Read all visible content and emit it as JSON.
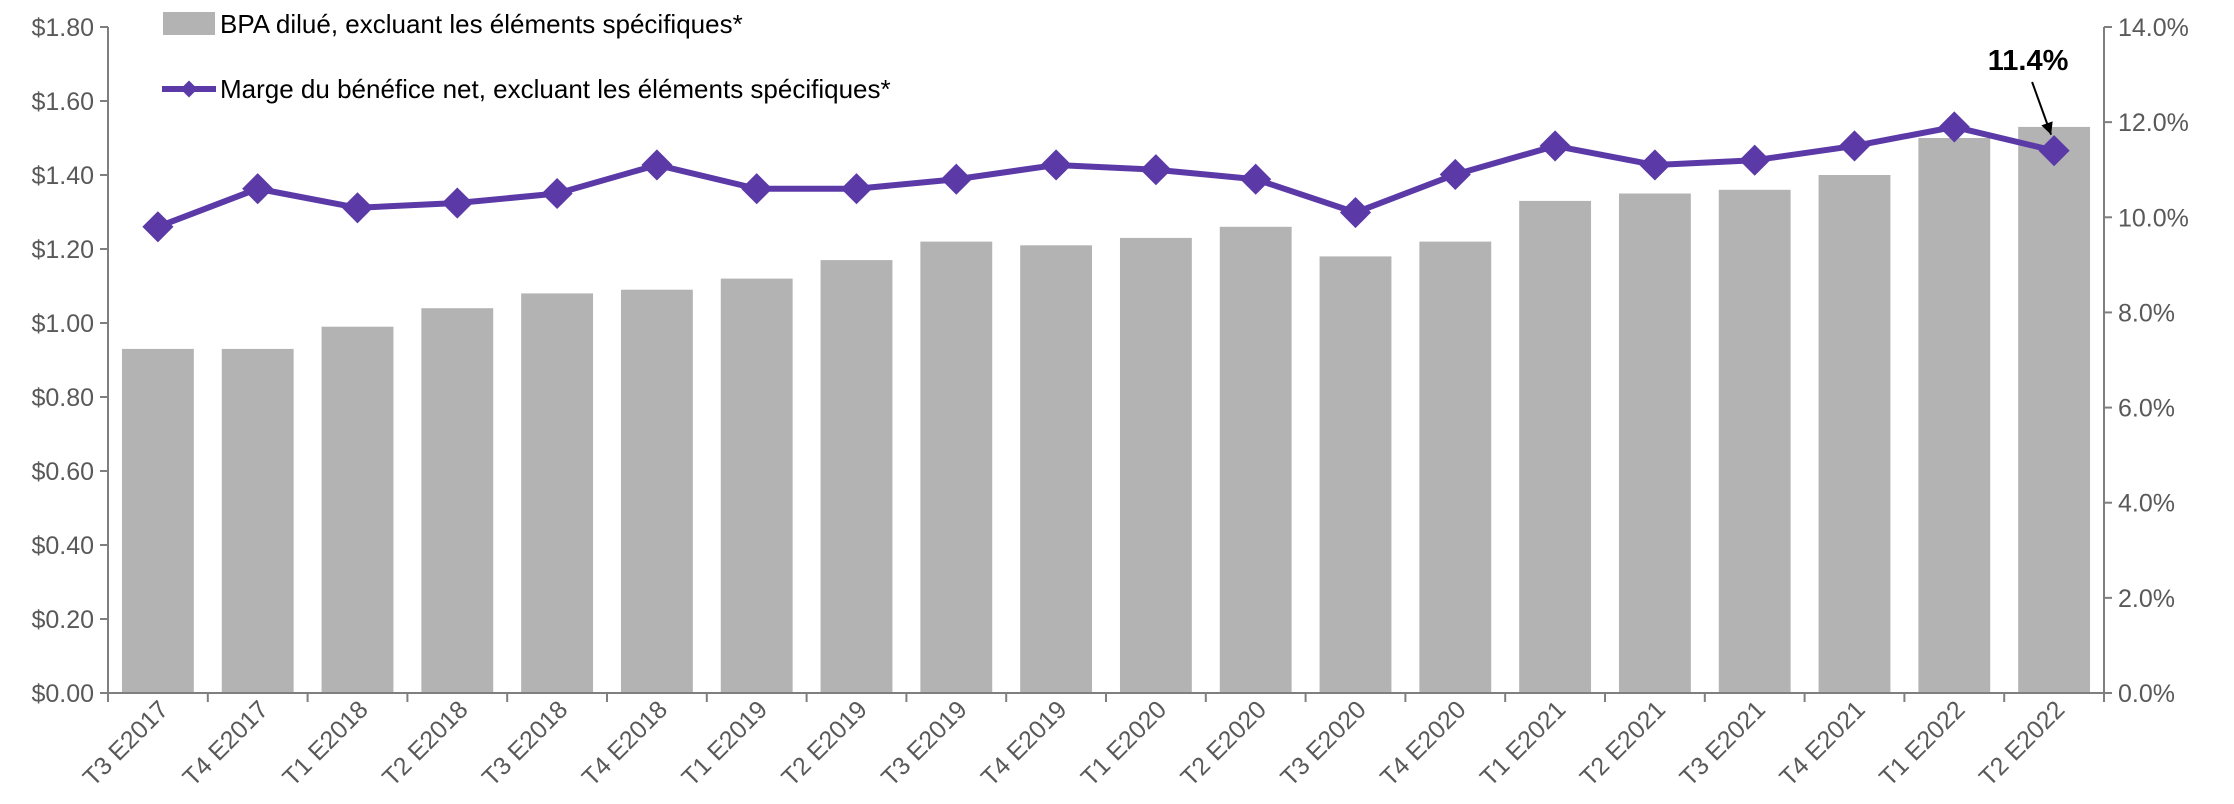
{
  "chart_data": {
    "type": "bar+line",
    "categories": [
      "T3 E2017",
      "T4 E2017",
      "T1 E2018",
      "T2 E2018",
      "T3 E2018",
      "T4 E2018",
      "T1 E2019",
      "T2 E2019",
      "T3 E2019",
      "T4 E2019",
      "T1 E2020",
      "T2 E2020",
      "T3 E2020",
      "T4 E2020",
      "T1 E2021",
      "T2 E2021",
      "T3 E2021",
      "T4 E2021",
      "T1 E2022",
      "T2 E2022"
    ],
    "series": [
      {
        "name": "BPA dilué, excluant les éléments spécifiques*",
        "type": "bar",
        "axis": "left",
        "color": "#b3b3b3",
        "values": [
          0.93,
          0.93,
          0.99,
          1.04,
          1.08,
          1.09,
          1.12,
          1.17,
          1.22,
          1.21,
          1.23,
          1.26,
          1.18,
          1.22,
          1.33,
          1.35,
          1.36,
          1.4,
          1.5,
          1.53
        ]
      },
      {
        "name": "Marge du bénéfice net, excluant les éléments spécifiques*",
        "type": "line",
        "axis": "right",
        "color": "#5b3aa8",
        "values": [
          9.8,
          10.6,
          10.2,
          10.3,
          10.5,
          11.1,
          10.6,
          10.6,
          10.8,
          11.1,
          11.0,
          10.8,
          10.1,
          10.9,
          11.5,
          11.1,
          11.2,
          11.5,
          11.9,
          11.4
        ]
      }
    ],
    "y_left": {
      "ylim": [
        0,
        1.8
      ],
      "ticks": [
        "$0.00",
        "$0.20",
        "$0.40",
        "$0.60",
        "$0.80",
        "$1.00",
        "$1.20",
        "$1.40",
        "$1.60",
        "$1.80"
      ]
    },
    "y_right": {
      "ylim": [
        0,
        14
      ],
      "ticks": [
        "0.0%",
        "2.0%",
        "4.0%",
        "6.0%",
        "8.0%",
        "10.0%",
        "12.0%",
        "14.0%"
      ]
    },
    "annotation": {
      "text": "11.4%",
      "category": "T2 E2022",
      "series": 1
    },
    "legend_placement": "top-left",
    "grid": false
  }
}
